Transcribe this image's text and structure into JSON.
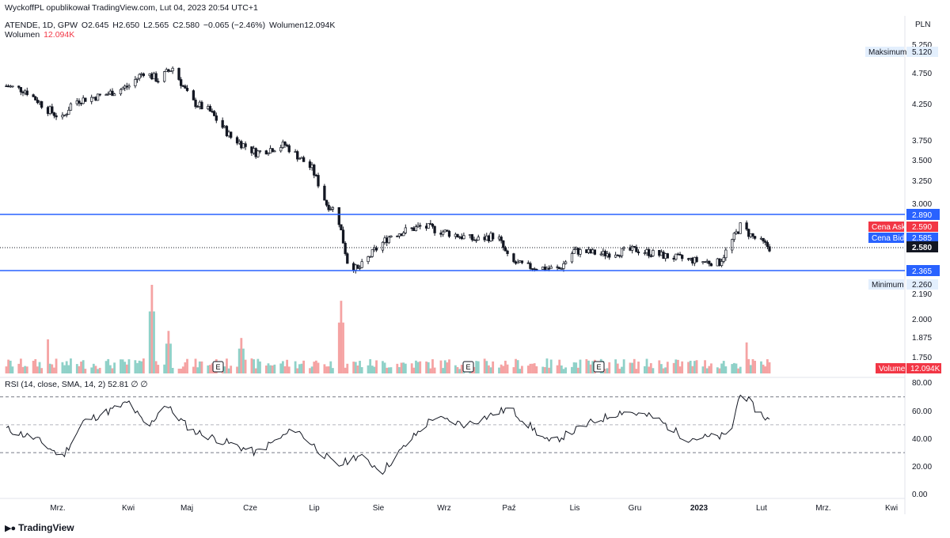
{
  "header": {
    "publisher": "WyckoffPL opublikował TradingView.com, Lut 04, 2023 20:54 UTC+1",
    "symbol": "ATENDE, 1D, GPW",
    "ohlc": {
      "open": "O2.645",
      "high": "H2.650",
      "low": "L2.565",
      "close": "C2.580",
      "change": "−0.065 (−2.46%)",
      "volume_label": "Wolumen12.094K"
    },
    "volume_legend": {
      "label": "Wolumen",
      "value": "12.094K"
    },
    "currency": "PLN"
  },
  "price_axis": {
    "ticks": [
      "5.250",
      "4.750",
      "4.250",
      "3.750",
      "3.500",
      "3.250",
      "3.000",
      "2.190",
      "2.000",
      "1.875",
      "1.750"
    ]
  },
  "markers": {
    "max": {
      "label": "Maksimum",
      "value": "5.120"
    },
    "min": {
      "label": "Minimum",
      "value": "2.260"
    },
    "resistance": {
      "value": "2.890"
    },
    "support": {
      "value": "2.365"
    },
    "ask": {
      "label": "Cena Ask",
      "value": "2.590"
    },
    "bid": {
      "label": "Cena Bid",
      "value": "2.585"
    },
    "last": {
      "value": "2.580"
    },
    "volume": {
      "label": "Volume",
      "value": "12.094K"
    }
  },
  "earnings_markers": [
    "E",
    "E",
    "E"
  ],
  "rsi": {
    "legend": "RSI (14, close, SMA, 14, 2)  52.81  ∅  ∅",
    "ticks": [
      "80.00",
      "60.00",
      "40.00",
      "20.00",
      "0.00"
    ],
    "upper": 70,
    "middle": 50,
    "lower": 30
  },
  "time_axis": {
    "labels": [
      "Mrz.",
      "Kwi",
      "Maj",
      "Cze",
      "Lip",
      "Sie",
      "Wrz",
      "Paź",
      "Lis",
      "Gru",
      "2023",
      "Lut",
      "Mrz.",
      "Kwi"
    ]
  },
  "brand": {
    "name": "TradingView",
    "logo": "tradingview-logo-icon"
  },
  "colors": {
    "up": "#26a69a",
    "down": "#ef5350",
    "vol_up": "#8fd1c8",
    "vol_down": "#f5a3a3",
    "level_line": "#2962ff",
    "max_min_tag": "#e3effd",
    "ask": "#f23645",
    "bid": "#2962ff",
    "last": "#131722"
  },
  "chart_data": {
    "type": "candlestick",
    "title": "ATENDE, 1D, GPW",
    "ylabel": "PLN",
    "ylim": [
      2.19,
      5.3
    ],
    "x_range": [
      "2022-02-01",
      "2023-02-03"
    ],
    "levels": [
      2.89,
      2.365
    ],
    "max": 5.12,
    "min": 2.26,
    "last": 2.58,
    "ask": 2.59,
    "bid": 2.585,
    "price_path": [
      {
        "d": "2022-02-01",
        "c": 4.55
      },
      {
        "d": "2022-02-10",
        "c": 4.48
      },
      {
        "d": "2022-02-20",
        "c": 4.2
      },
      {
        "d": "2022-02-28",
        "c": 4.05
      },
      {
        "d": "2022-03-05",
        "c": 4.3
      },
      {
        "d": "2022-03-20",
        "c": 4.4
      },
      {
        "d": "2022-04-01",
        "c": 4.55
      },
      {
        "d": "2022-04-08",
        "c": 4.78
      },
      {
        "d": "2022-04-15",
        "c": 4.65
      },
      {
        "d": "2022-04-22",
        "c": 4.85
      },
      {
        "d": "2022-05-01",
        "c": 4.3
      },
      {
        "d": "2022-05-10",
        "c": 4.15
      },
      {
        "d": "2022-05-20",
        "c": 3.8
      },
      {
        "d": "2022-06-01",
        "c": 3.6
      },
      {
        "d": "2022-06-15",
        "c": 3.7
      },
      {
        "d": "2022-06-28",
        "c": 3.4
      },
      {
        "d": "2022-07-05",
        "c": 3.0
      },
      {
        "d": "2022-07-10",
        "c": 2.92
      },
      {
        "d": "2022-07-15",
        "c": 2.45
      },
      {
        "d": "2022-07-20",
        "c": 2.37
      },
      {
        "d": "2022-07-28",
        "c": 2.55
      },
      {
        "d": "2022-08-05",
        "c": 2.7
      },
      {
        "d": "2022-08-20",
        "c": 2.78
      },
      {
        "d": "2022-09-01",
        "c": 2.72
      },
      {
        "d": "2022-09-15",
        "c": 2.65
      },
      {
        "d": "2022-09-25",
        "c": 2.7
      },
      {
        "d": "2022-10-01",
        "c": 2.45
      },
      {
        "d": "2022-10-10",
        "c": 2.4
      },
      {
        "d": "2022-10-25",
        "c": 2.38
      },
      {
        "d": "2022-11-01",
        "c": 2.55
      },
      {
        "d": "2022-11-15",
        "c": 2.52
      },
      {
        "d": "2022-12-01",
        "c": 2.56
      },
      {
        "d": "2022-12-15",
        "c": 2.5
      },
      {
        "d": "2023-01-01",
        "c": 2.45
      },
      {
        "d": "2023-01-10",
        "c": 2.44
      },
      {
        "d": "2023-01-20",
        "c": 2.78
      },
      {
        "d": "2023-01-26",
        "c": 2.68
      },
      {
        "d": "2023-02-03",
        "c": 2.58
      }
    ],
    "volume_peaks": [
      {
        "d": "2022-02-20",
        "v": 0.55
      },
      {
        "d": "2022-04-12",
        "v": 1.0
      },
      {
        "d": "2022-04-20",
        "v": 0.48
      },
      {
        "d": "2022-05-25",
        "v": 0.4
      },
      {
        "d": "2022-07-12",
        "v": 0.82
      },
      {
        "d": "2023-01-22",
        "v": 0.5
      }
    ],
    "rsi_path": [
      {
        "d": "2022-02-01",
        "v": 47
      },
      {
        "d": "2022-02-15",
        "v": 40
      },
      {
        "d": "2022-02-28",
        "v": 27
      },
      {
        "d": "2022-03-10",
        "v": 52
      },
      {
        "d": "2022-04-01",
        "v": 66
      },
      {
        "d": "2022-04-10",
        "v": 47
      },
      {
        "d": "2022-04-18",
        "v": 65
      },
      {
        "d": "2022-05-01",
        "v": 46
      },
      {
        "d": "2022-06-01",
        "v": 30
      },
      {
        "d": "2022-06-20",
        "v": 47
      },
      {
        "d": "2022-07-10",
        "v": 20
      },
      {
        "d": "2022-07-20",
        "v": 28
      },
      {
        "d": "2022-08-01",
        "v": 17
      },
      {
        "d": "2022-08-15",
        "v": 40
      },
      {
        "d": "2022-08-25",
        "v": 55
      },
      {
        "d": "2022-09-10",
        "v": 50
      },
      {
        "d": "2022-10-01",
        "v": 62
      },
      {
        "d": "2022-10-20",
        "v": 37
      },
      {
        "d": "2022-11-10",
        "v": 52
      },
      {
        "d": "2022-11-25",
        "v": 60
      },
      {
        "d": "2022-12-10",
        "v": 55
      },
      {
        "d": "2022-12-25",
        "v": 40
      },
      {
        "d": "2023-01-15",
        "v": 42
      },
      {
        "d": "2023-01-20",
        "v": 74
      },
      {
        "d": "2023-01-28",
        "v": 60
      },
      {
        "d": "2023-02-03",
        "v": 53
      }
    ]
  }
}
